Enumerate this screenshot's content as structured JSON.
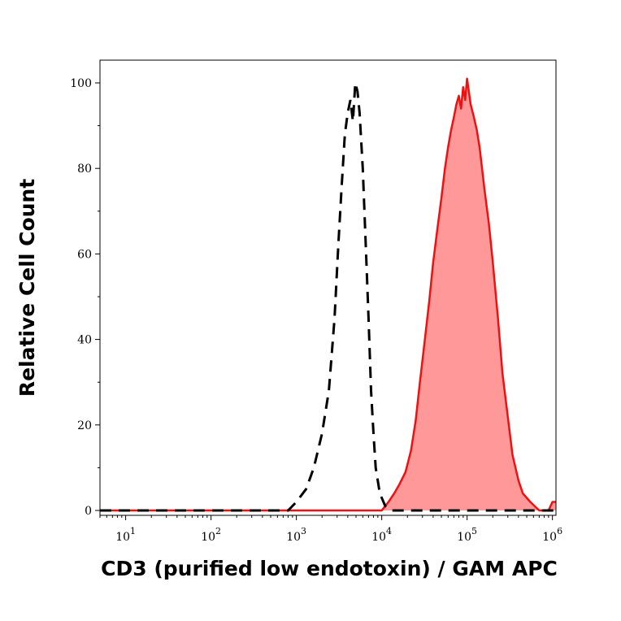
{
  "chart_data": {
    "type": "area",
    "title": "",
    "xlabel": "CD3 (purified low endotoxin) / GAM APC",
    "ylabel": "Relative Cell Count",
    "x_scale": "log",
    "xlim": [
      5,
      1100000
    ],
    "ylim": [
      0,
      100
    ],
    "x_tick_labels": [
      {
        "base": "10",
        "exp": "1",
        "value": 10
      },
      {
        "base": "10",
        "exp": "2",
        "value": 100
      },
      {
        "base": "10",
        "exp": "3",
        "value": 1000
      },
      {
        "base": "10",
        "exp": "4",
        "value": 10000
      },
      {
        "base": "10",
        "exp": "5",
        "value": 100000
      },
      {
        "base": "10",
        "exp": "6",
        "value": 1000000
      }
    ],
    "y_ticks": [
      0,
      20,
      40,
      60,
      80,
      100
    ],
    "series": [
      {
        "style": "dashed black line (unfilled)",
        "color": "#000000",
        "x": [
          5,
          800,
          1000,
          1300,
          1600,
          2000,
          2400,
          2800,
          3100,
          3400,
          3700,
          4000,
          4300,
          4600,
          4900,
          5200,
          5500,
          6000,
          6500,
          7000,
          7500,
          8000,
          8500,
          9500,
          11000,
          13000,
          16000,
          1100000
        ],
        "y": [
          0,
          0,
          2,
          5,
          10,
          18,
          28,
          45,
          62,
          76,
          88,
          93,
          96,
          91,
          100,
          98,
          93,
          80,
          62,
          45,
          28,
          18,
          10,
          4,
          1,
          0,
          0,
          0
        ]
      },
      {
        "style": "solid red line with light-red fill",
        "color": "#ee1111",
        "fill": "#ff9999",
        "x": [
          5,
          10000,
          12000,
          14000,
          16000,
          19000,
          22000,
          25000,
          28000,
          32000,
          36000,
          40000,
          45000,
          50000,
          55000,
          60000,
          65000,
          70000,
          75000,
          80000,
          85000,
          90000,
          95000,
          100000,
          110000,
          120000,
          130000,
          140000,
          160000,
          180000,
          200000,
          230000,
          260000,
          300000,
          340000,
          400000,
          450000,
          550000,
          700000,
          900000,
          1000000,
          1100000
        ],
        "y": [
          0,
          0,
          2,
          4,
          6,
          9,
          14,
          21,
          30,
          40,
          49,
          58,
          66,
          73,
          80,
          85,
          89,
          92,
          95,
          97,
          94,
          99,
          96,
          101,
          95,
          92,
          89,
          85,
          75,
          67,
          58,
          45,
          32,
          22,
          13,
          7,
          4,
          2,
          0,
          0,
          2,
          2
        ]
      }
    ]
  }
}
